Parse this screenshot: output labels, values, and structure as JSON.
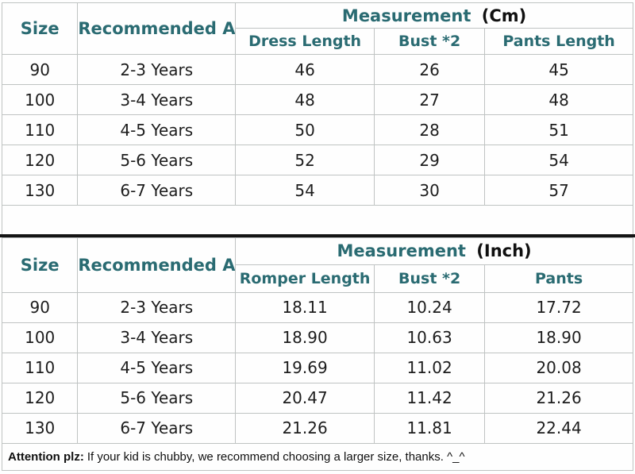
{
  "theme": {
    "header_color": "#2a6b72",
    "text_color": "#1d1d1d",
    "border_color": "#bfc3c2",
    "divider_color": "#141414",
    "background": "#fefefe"
  },
  "table_cm": {
    "size_header": "Size",
    "age_header": "Recommended Age",
    "measurement_label": "Measurement",
    "measurement_unit": "(Cm)",
    "columns": [
      "Dress Length",
      "Bust *2",
      "Pants Length"
    ],
    "rows": [
      {
        "size": "90",
        "age": "2-3 Years",
        "values": [
          "46",
          "26",
          "45"
        ]
      },
      {
        "size": "100",
        "age": "3-4 Years",
        "values": [
          "48",
          "27",
          "48"
        ]
      },
      {
        "size": "110",
        "age": "4-5 Years",
        "values": [
          "50",
          "28",
          "51"
        ]
      },
      {
        "size": "120",
        "age": "5-6 Years",
        "values": [
          "52",
          "29",
          "54"
        ]
      },
      {
        "size": "130",
        "age": "6-7 Years",
        "values": [
          "54",
          "30",
          "57"
        ]
      }
    ]
  },
  "table_inch": {
    "size_header": "Size",
    "age_header": "Recommended Age",
    "measurement_label": "Measurement",
    "measurement_unit": "(Inch)",
    "columns": [
      "Romper Length",
      "Bust *2",
      "Pants"
    ],
    "rows": [
      {
        "size": "90",
        "age": "2-3 Years",
        "values": [
          "18.11",
          "10.24",
          "17.72"
        ]
      },
      {
        "size": "100",
        "age": "3-4 Years",
        "values": [
          "18.90",
          "10.63",
          "18.90"
        ]
      },
      {
        "size": "110",
        "age": "4-5 Years",
        "values": [
          "19.69",
          "11.02",
          "20.08"
        ]
      },
      {
        "size": "120",
        "age": "5-6 Years",
        "values": [
          "20.47",
          "11.42",
          "21.26"
        ]
      },
      {
        "size": "130",
        "age": "6-7 Years",
        "values": [
          "21.26",
          "11.81",
          "22.44"
        ]
      }
    ]
  },
  "footer": {
    "attention_bold": "Attention plz:",
    "attention_text": "If your kid is chubby, we recommend choosing a larger size, thanks. ^_^"
  }
}
